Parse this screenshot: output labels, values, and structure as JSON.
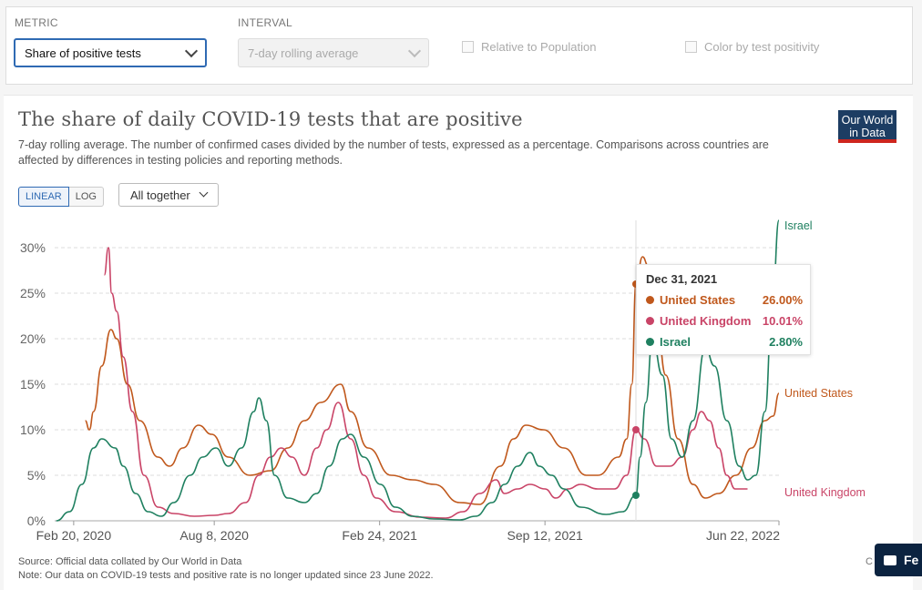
{
  "controls": {
    "metric_label": "METRIC",
    "metric_value": "Share of positive tests",
    "interval_label": "INTERVAL",
    "interval_value": "7-day rolling average",
    "relative_label": "Relative to Population",
    "color_label": "Color by test positivity"
  },
  "card": {
    "title": "The share of daily COVID-19 tests that are positive",
    "subtitle": "7-day rolling average. The number of confirmed cases divided by the number of tests, expressed as a percentage. Comparisons across countries are affected by differences in testing policies and reporting methods.",
    "logo_line1": "Our World",
    "logo_line2": "in Data",
    "scale_linear": "LINEAR",
    "scale_log": "LOG",
    "facet": "All together",
    "source": "Source: Official data collated by Our World in Data",
    "note": "Note: Our data on COVID-19 tests and positive rate is no longer updated since 23 June 2022."
  },
  "tooltip": {
    "date": "Dec 31, 2021",
    "rows": [
      {
        "name": "United States",
        "value": "26.00%",
        "color": "#c0581c"
      },
      {
        "name": "United Kingdom",
        "value": "10.01%",
        "color": "#c94467"
      },
      {
        "name": "Israel",
        "value": "2.80%",
        "color": "#1f8060"
      }
    ]
  },
  "feedback": "Fe",
  "chart_data": {
    "type": "line",
    "title": "The share of daily COVID-19 tests that are positive",
    "ylim": [
      0,
      33
    ],
    "yticks": [
      0,
      5,
      10,
      15,
      20,
      25,
      30
    ],
    "ytick_labels": [
      "0%",
      "5%",
      "10%",
      "15%",
      "20%",
      "25%",
      "30%"
    ],
    "x_start": "2020-01-28",
    "x_end": "2022-06-22",
    "xticks": [
      "2020-02-20",
      "2020-08-08",
      "2021-02-24",
      "2021-09-12",
      "2022-06-22"
    ],
    "xtick_labels": [
      "Feb 20, 2020",
      "Aug 8, 2020",
      "Feb 24, 2021",
      "Sep 12, 2021",
      "Jun 22, 2022"
    ],
    "hover_date": "2021-12-31",
    "grid": true,
    "series": [
      {
        "name": "United States",
        "color": "#c0581c",
        "points": [
          [
            "2020-03-05",
            11
          ],
          [
            "2020-03-10",
            10
          ],
          [
            "2020-03-15",
            12
          ],
          [
            "2020-03-25",
            17
          ],
          [
            "2020-04-05",
            21
          ],
          [
            "2020-04-12",
            20
          ],
          [
            "2020-04-25",
            15
          ],
          [
            "2020-05-10",
            11
          ],
          [
            "2020-06-01",
            7
          ],
          [
            "2020-06-15",
            6
          ],
          [
            "2020-07-01",
            8
          ],
          [
            "2020-07-20",
            10.5
          ],
          [
            "2020-08-05",
            9.5
          ],
          [
            "2020-08-25",
            7
          ],
          [
            "2020-09-20",
            5
          ],
          [
            "2020-10-15",
            5.5
          ],
          [
            "2020-11-05",
            8
          ],
          [
            "2020-11-25",
            11
          ],
          [
            "2020-12-15",
            13
          ],
          [
            "2021-01-08",
            15
          ],
          [
            "2021-01-20",
            12
          ],
          [
            "2021-02-10",
            8
          ],
          [
            "2021-03-10",
            5
          ],
          [
            "2021-04-05",
            4.5
          ],
          [
            "2021-05-01",
            4
          ],
          [
            "2021-06-01",
            2
          ],
          [
            "2021-06-25",
            1.8
          ],
          [
            "2021-07-20",
            6
          ],
          [
            "2021-08-05",
            9
          ],
          [
            "2021-08-20",
            10.5
          ],
          [
            "2021-09-10",
            10
          ],
          [
            "2021-10-05",
            8
          ],
          [
            "2021-11-01",
            5
          ],
          [
            "2021-11-15",
            5
          ],
          [
            "2021-12-10",
            7
          ],
          [
            "2021-12-20",
            9
          ],
          [
            "2021-12-26",
            15
          ],
          [
            "2021-12-31",
            26
          ],
          [
            "2022-01-08",
            29
          ],
          [
            "2022-01-15",
            28
          ],
          [
            "2022-01-25",
            22
          ],
          [
            "2022-02-05",
            16
          ],
          [
            "2022-02-20",
            9
          ],
          [
            "2022-03-10",
            4
          ],
          [
            "2022-03-25",
            2.5
          ],
          [
            "2022-04-10",
            3
          ],
          [
            "2022-05-01",
            5
          ],
          [
            "2022-05-20",
            8
          ],
          [
            "2022-06-05",
            11
          ],
          [
            "2022-06-15",
            11.5
          ],
          [
            "2022-06-22",
            14
          ]
        ]
      },
      {
        "name": "United Kingdom",
        "color": "#c94467",
        "points": [
          [
            "2020-03-28",
            27
          ],
          [
            "2020-04-02",
            30
          ],
          [
            "2020-04-06",
            25
          ],
          [
            "2020-04-12",
            23
          ],
          [
            "2020-04-20",
            18
          ],
          [
            "2020-05-01",
            12
          ],
          [
            "2020-05-15",
            5
          ],
          [
            "2020-06-01",
            1.5
          ],
          [
            "2020-06-20",
            0.8
          ],
          [
            "2020-07-15",
            0.5
          ],
          [
            "2020-08-08",
            0.6
          ],
          [
            "2020-08-25",
            0.8
          ],
          [
            "2020-09-15",
            2
          ],
          [
            "2020-10-01",
            5
          ],
          [
            "2020-10-15",
            7
          ],
          [
            "2020-10-28",
            8
          ],
          [
            "2020-11-10",
            7
          ],
          [
            "2020-11-25",
            5
          ],
          [
            "2020-12-10",
            8
          ],
          [
            "2020-12-22",
            10
          ],
          [
            "2021-01-05",
            13
          ],
          [
            "2021-01-20",
            9
          ],
          [
            "2021-02-05",
            5
          ],
          [
            "2021-02-20",
            2.5
          ],
          [
            "2021-03-15",
            1
          ],
          [
            "2021-04-15",
            0.4
          ],
          [
            "2021-05-15",
            0.3
          ],
          [
            "2021-06-05",
            1
          ],
          [
            "2021-06-25",
            3
          ],
          [
            "2021-07-15",
            4.5
          ],
          [
            "2021-07-25",
            3
          ],
          [
            "2021-08-10",
            3.5
          ],
          [
            "2021-08-25",
            4
          ],
          [
            "2021-09-12",
            3.5
          ],
          [
            "2021-09-25",
            2.5
          ],
          [
            "2021-10-10",
            3.5
          ],
          [
            "2021-10-25",
            4
          ],
          [
            "2021-11-15",
            3.5
          ],
          [
            "2021-12-05",
            3.5
          ],
          [
            "2021-12-20",
            5
          ],
          [
            "2021-12-31",
            10
          ],
          [
            "2022-01-10",
            9
          ],
          [
            "2022-01-25",
            6
          ],
          [
            "2022-02-10",
            6
          ],
          [
            "2022-02-25",
            7
          ],
          [
            "2022-03-10",
            10
          ],
          [
            "2022-03-20",
            12
          ],
          [
            "2022-03-30",
            11
          ],
          [
            "2022-04-10",
            8
          ],
          [
            "2022-04-20",
            5
          ],
          [
            "2022-04-30",
            3.5
          ],
          [
            "2022-05-15",
            3.5
          ]
        ]
      },
      {
        "name": "Israel",
        "color": "#1f8060",
        "points": [
          [
            "2020-01-30",
            0
          ],
          [
            "2020-02-15",
            1
          ],
          [
            "2020-03-01",
            4
          ],
          [
            "2020-03-15",
            8
          ],
          [
            "2020-03-25",
            9
          ],
          [
            "2020-04-10",
            8
          ],
          [
            "2020-04-20",
            6
          ],
          [
            "2020-05-05",
            3
          ],
          [
            "2020-05-20",
            1
          ],
          [
            "2020-06-05",
            0.5
          ],
          [
            "2020-06-20",
            2
          ],
          [
            "2020-07-10",
            5
          ],
          [
            "2020-07-25",
            7
          ],
          [
            "2020-08-10",
            8
          ],
          [
            "2020-08-25",
            6
          ],
          [
            "2020-09-10",
            8
          ],
          [
            "2020-09-25",
            12
          ],
          [
            "2020-10-01",
            13.5
          ],
          [
            "2020-10-10",
            11
          ],
          [
            "2020-10-20",
            5
          ],
          [
            "2020-11-05",
            2.5
          ],
          [
            "2020-11-25",
            2
          ],
          [
            "2020-12-10",
            3
          ],
          [
            "2020-12-25",
            6
          ],
          [
            "2021-01-10",
            9
          ],
          [
            "2021-01-20",
            9.5
          ],
          [
            "2021-02-05",
            7
          ],
          [
            "2021-02-25",
            4
          ],
          [
            "2021-03-15",
            1.5
          ],
          [
            "2021-04-05",
            0.5
          ],
          [
            "2021-05-01",
            0.2
          ],
          [
            "2021-06-01",
            0.1
          ],
          [
            "2021-06-20",
            0.5
          ],
          [
            "2021-07-10",
            2
          ],
          [
            "2021-07-25",
            4
          ],
          [
            "2021-08-10",
            6
          ],
          [
            "2021-08-25",
            7.5
          ],
          [
            "2021-09-05",
            6
          ],
          [
            "2021-09-20",
            5
          ],
          [
            "2021-10-05",
            3.5
          ],
          [
            "2021-10-25",
            1.5
          ],
          [
            "2021-11-25",
            0.7
          ],
          [
            "2021-12-15",
            1
          ],
          [
            "2021-12-31",
            2.8
          ],
          [
            "2022-01-05",
            7
          ],
          [
            "2022-01-12",
            13
          ],
          [
            "2022-01-20",
            20
          ],
          [
            "2022-02-01",
            16
          ],
          [
            "2022-02-12",
            9
          ],
          [
            "2022-02-25",
            7
          ],
          [
            "2022-03-10",
            11
          ],
          [
            "2022-03-25",
            19
          ],
          [
            "2022-04-05",
            17
          ],
          [
            "2022-04-20",
            11
          ],
          [
            "2022-05-05",
            6
          ],
          [
            "2022-05-15",
            4.5
          ],
          [
            "2022-05-25",
            5
          ],
          [
            "2022-06-05",
            12
          ],
          [
            "2022-06-14",
            24
          ],
          [
            "2022-06-22",
            33
          ]
        ]
      }
    ]
  }
}
